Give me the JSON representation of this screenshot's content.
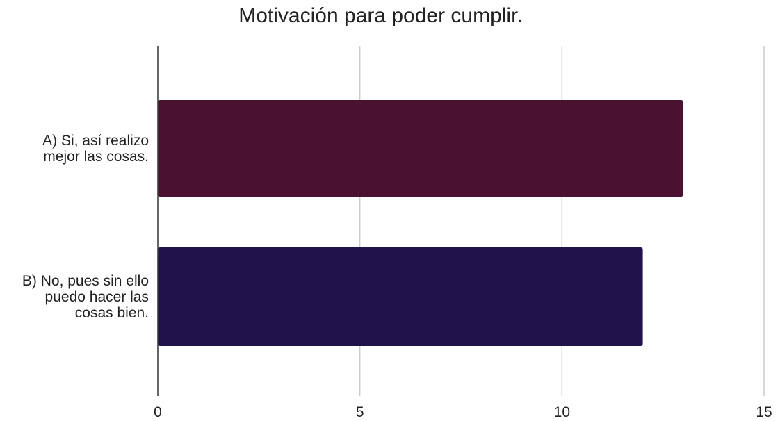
{
  "chart_data": {
    "type": "bar",
    "orientation": "horizontal",
    "title": "Motivación para poder cumplir.",
    "xlabel": "",
    "ylabel": "",
    "categories": [
      [
        "A) Si, así realizo",
        "mejor las cosas."
      ],
      [
        "B) No, pues sin ello",
        "puedo hacer las",
        "cosas bien."
      ]
    ],
    "values": [
      13,
      12
    ],
    "colors": [
      "#4a1230",
      "#20134b"
    ],
    "xlim": [
      0,
      15
    ],
    "xticks": [
      "0",
      "5",
      "10",
      "15"
    ],
    "grid": "vertical",
    "legend": "none"
  }
}
